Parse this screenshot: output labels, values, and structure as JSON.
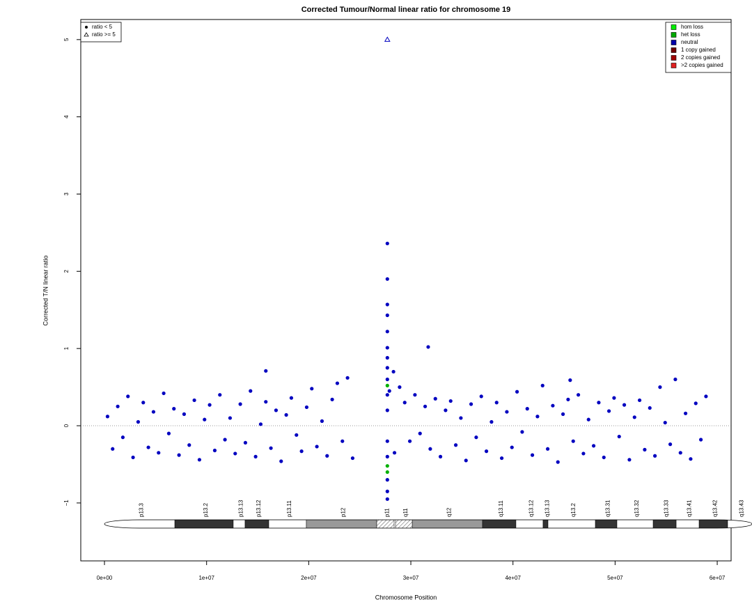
{
  "chart_data": {
    "type": "scatter",
    "title": "Corrected Tumour/Normal linear ratio for chromosome  19",
    "x_label": "Chromosome Position",
    "y_label": "Corrected T/N linear ratio",
    "xlim": [
      -2320000,
      61360000
    ],
    "ylim": [
      -1.75,
      5.26
    ],
    "xticks": [
      {
        "value": 0,
        "label": "0e+00"
      },
      {
        "value": 10000000,
        "label": "1e+07"
      },
      {
        "value": 20000000,
        "label": "2e+07"
      },
      {
        "value": 30000000,
        "label": "3e+07"
      },
      {
        "value": 40000000,
        "label": "4e+07"
      },
      {
        "value": 50000000,
        "label": "5e+07"
      },
      {
        "value": 60000000,
        "label": "6e+07"
      }
    ],
    "yticks": [
      {
        "value": -1,
        "label": "−1"
      },
      0,
      1,
      2,
      3,
      4,
      5
    ],
    "hline": 0,
    "marker_legend": [
      {
        "name": "ratio < 5",
        "shape": "dot"
      },
      {
        "name": "ratio >= 5",
        "shape": "triangle"
      }
    ],
    "copy_legend": [
      {
        "name": "hom loss",
        "color": "#00ee00"
      },
      {
        "name": "het loss",
        "color": "#00aa00"
      },
      {
        "name": "neutral",
        "color": "#0000aa"
      },
      {
        "name": "1 copy gained",
        "color": "#700000"
      },
      {
        "name": "2 copies gained",
        "color": "#a00000"
      },
      {
        "name": ">2 copies gained",
        "color": "#e02020"
      }
    ],
    "series": [
      {
        "color": "#0000c0",
        "shape": "dot",
        "x": [
          300000,
          800000,
          1300000,
          1800000,
          2300000,
          2800000,
          3300000,
          3800000,
          4300000,
          4800000,
          5300000,
          5800000,
          6300000,
          6800000,
          7300000,
          7800000,
          8300000,
          8800000,
          9300000,
          9800000,
          10300000,
          10800000,
          11300000,
          11800000,
          12300000,
          12800000,
          13300000,
          13800000,
          14300000,
          14800000,
          15300000,
          15800000,
          16300000,
          16800000,
          17300000,
          17800000,
          18300000,
          18800000,
          19300000,
          19800000,
          20300000,
          20800000,
          21300000,
          21800000,
          22300000,
          22800000,
          23300000,
          23800000,
          24300000,
          27900000,
          28400000,
          28900000,
          29400000,
          29900000,
          30400000,
          30900000,
          31400000,
          31900000,
          32400000,
          32900000,
          33400000,
          33900000,
          34400000,
          34900000,
          35400000,
          35900000,
          36400000,
          36900000,
          37400000,
          37900000,
          38400000,
          38900000,
          39400000,
          39900000,
          40400000,
          40900000,
          41400000,
          41900000,
          42400000,
          42900000,
          43400000,
          43900000,
          44400000,
          44900000,
          45400000,
          45900000,
          46400000,
          46900000,
          47400000,
          47900000,
          48400000,
          48900000,
          49400000,
          49900000,
          50400000,
          50900000,
          51400000,
          51900000,
          52400000,
          52900000,
          53400000,
          53900000,
          54400000,
          54900000,
          55400000,
          55900000,
          56400000,
          56900000,
          57400000,
          57900000,
          58400000,
          58900000,
          27700000,
          27700000,
          27700000,
          27700000,
          27700000,
          27700000,
          27700000,
          27700000,
          27700000,
          27700000,
          27700000,
          27700000,
          27700000,
          27700000,
          27700000,
          27700000,
          15800000,
          31700000,
          28300000,
          45600000
        ],
        "values": [
          0.12,
          -0.3,
          0.25,
          -0.15,
          0.38,
          -0.41,
          0.05,
          0.3,
          -0.28,
          0.18,
          -0.35,
          0.42,
          -0.1,
          0.22,
          -0.38,
          0.15,
          -0.25,
          0.33,
          -0.44,
          0.08,
          0.27,
          -0.32,
          0.4,
          -0.18,
          0.1,
          -0.36,
          0.28,
          -0.22,
          0.45,
          -0.4,
          0.02,
          0.31,
          -0.29,
          0.2,
          -0.46,
          0.14,
          0.36,
          -0.12,
          -0.33,
          0.24,
          0.48,
          -0.27,
          0.06,
          -0.39,
          0.34,
          0.55,
          -0.2,
          0.62,
          -0.42,
          0.45,
          -0.35,
          0.5,
          0.3,
          -0.2,
          0.4,
          -0.1,
          0.25,
          -0.3,
          0.35,
          -0.4,
          0.2,
          0.32,
          -0.25,
          0.1,
          -0.45,
          0.28,
          -0.15,
          0.38,
          -0.33,
          0.05,
          0.3,
          -0.42,
          0.18,
          -0.28,
          0.44,
          -0.08,
          0.22,
          -0.38,
          0.12,
          0.52,
          -0.3,
          0.26,
          -0.47,
          0.15,
          0.34,
          -0.2,
          0.4,
          -0.36,
          0.08,
          -0.26,
          0.3,
          -0.41,
          0.19,
          0.36,
          -0.14,
          0.27,
          -0.44,
          0.11,
          0.33,
          -0.31,
          0.23,
          -0.39,
          0.5,
          0.04,
          -0.24,
          0.6,
          -0.35,
          0.16,
          -0.43,
          0.29,
          -0.18,
          0.38,
          2.36,
          1.9,
          1.57,
          1.43,
          1.22,
          1.01,
          0.88,
          0.75,
          0.6,
          0.4,
          0.2,
          -0.2,
          -0.4,
          -0.7,
          -0.85,
          -0.95,
          0.71,
          1.02,
          0.7,
          0.59
        ]
      },
      {
        "color": "#00b000",
        "shape": "dot",
        "x": [
          27700000,
          27700000,
          27700000
        ],
        "values": [
          0.52,
          -0.52,
          -0.6
        ]
      },
      {
        "color": "#0000c0",
        "shape": "triangle",
        "x": [
          27700000
        ],
        "values": [
          5
        ]
      }
    ],
    "ideogram": [
      {
        "name": "p13.3",
        "start": 0,
        "end": 6890000,
        "stain": "white"
      },
      {
        "name": "p13.2",
        "start": 6890000,
        "end": 12610000,
        "stain": "black"
      },
      {
        "name": "p13.13",
        "start": 12610000,
        "end": 13770000,
        "stain": "white"
      },
      {
        "name": "p13.12",
        "start": 13770000,
        "end": 16090000,
        "stain": "black"
      },
      {
        "name": "p13.11",
        "start": 16090000,
        "end": 19770000,
        "stain": "white"
      },
      {
        "name": "p12",
        "start": 19770000,
        "end": 26660000,
        "stain": "gray"
      },
      {
        "name": "p11",
        "start": 26660000,
        "end": 28360000,
        "stain": "centromere"
      },
      {
        "name": "q11",
        "start": 28500000,
        "end": 30140000,
        "stain": "centromere"
      },
      {
        "name": "q12",
        "start": 30140000,
        "end": 37020000,
        "stain": "gray"
      },
      {
        "name": "q13.11",
        "start": 37020000,
        "end": 40290000,
        "stain": "black"
      },
      {
        "name": "q13.12",
        "start": 40290000,
        "end": 42950000,
        "stain": "white"
      },
      {
        "name": "q13.13",
        "start": 42950000,
        "end": 43430000,
        "stain": "black"
      },
      {
        "name": "q13.2",
        "start": 43430000,
        "end": 48070000,
        "stain": "white"
      },
      {
        "name": "q13.31",
        "start": 48070000,
        "end": 50180000,
        "stain": "black"
      },
      {
        "name": "q13.32",
        "start": 50180000,
        "end": 53730000,
        "stain": "white"
      },
      {
        "name": "q13.33",
        "start": 53730000,
        "end": 55980000,
        "stain": "black"
      },
      {
        "name": "q13.41",
        "start": 55980000,
        "end": 58230000,
        "stain": "white"
      },
      {
        "name": "q13.42",
        "start": 58230000,
        "end": 61020000,
        "stain": "black"
      },
      {
        "name": "q13.43",
        "start": 61020000,
        "end": 63410000,
        "stain": "white"
      }
    ]
  }
}
